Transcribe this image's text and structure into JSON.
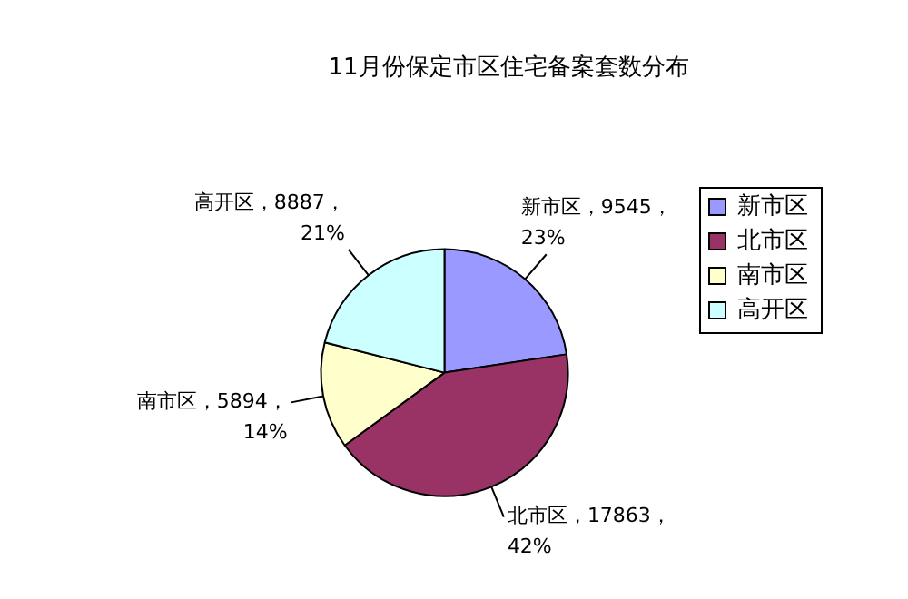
{
  "chart_data": {
    "type": "pie",
    "title": "11月份保定市区住宅备案套数分布",
    "categories": [
      "新市区",
      "北市区",
      "南市区",
      "高开区"
    ],
    "values": [
      9545,
      17863,
      5894,
      8887
    ],
    "colors": [
      "#9999ff",
      "#993366",
      "#ffffcc",
      "#ccffff"
    ],
    "value_labels": [
      "新市区，9545，\n23%",
      "北市区，17863，\n42%",
      "南市区，5894，\n14%",
      "高开区，8887，\n21%"
    ],
    "legend": "right"
  }
}
